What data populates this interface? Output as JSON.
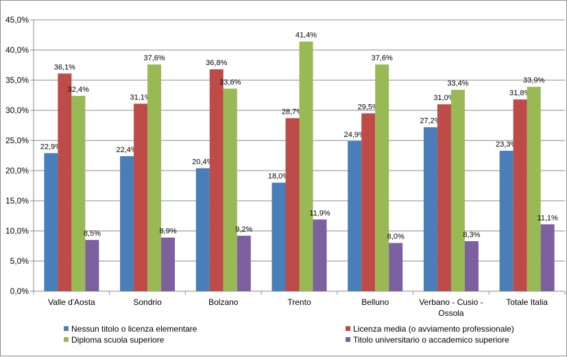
{
  "chart_data": {
    "type": "bar",
    "title": "",
    "xlabel": "",
    "ylabel": "",
    "ylim": [
      0,
      45
    ],
    "ytick_step": 5,
    "ytick_labels": [
      "0,0%",
      "5,0%",
      "10,0%",
      "15,0%",
      "20,0%",
      "25,0%",
      "30,0%",
      "35,0%",
      "40,0%",
      "45,0%"
    ],
    "grid": true,
    "legend_position": "bottom",
    "categories": [
      [
        "Valle d'Aosta"
      ],
      [
        "Sondrio"
      ],
      [
        "Bolzano"
      ],
      [
        "Trento"
      ],
      [
        "Belluno"
      ],
      [
        "Verbano - Cusio -",
        "Ossola"
      ],
      [
        "Totale Italia"
      ]
    ],
    "series": [
      {
        "name": "Nessun titolo o licenza elementare",
        "color": "#4a7ebb",
        "values": [
          22.9,
          22.4,
          20.4,
          18.0,
          24.9,
          27.2,
          23.3
        ],
        "labels": [
          "22,9%",
          "22,4%",
          "20,4%",
          "18,0%",
          "24,9%",
          "27,2%",
          "23,3%"
        ]
      },
      {
        "name": "Licenza media (o avviamento professionale)",
        "color": "#be4b48",
        "values": [
          36.1,
          31.1,
          36.8,
          28.7,
          29.5,
          31.0,
          31.8
        ],
        "labels": [
          "36,1%",
          "31,1%",
          "36,8%",
          "28,7%",
          "29,5%",
          "31,0%",
          "31,8%"
        ]
      },
      {
        "name": "Diploma scuola superiore",
        "color": "#98b954",
        "values": [
          32.4,
          37.6,
          33.6,
          41.4,
          37.6,
          33.4,
          33.9
        ],
        "labels": [
          "32,4%",
          "37,6%",
          "33,6%",
          "41,4%",
          "37,6%",
          "33,4%",
          "33,9%"
        ]
      },
      {
        "name": "Titolo universitario o accademico superiore",
        "color": "#7d60a0",
        "values": [
          8.5,
          8.9,
          9.2,
          11.9,
          8.0,
          8.3,
          11.1
        ],
        "labels": [
          "8,5%",
          "8,9%",
          "9,2%",
          "11,9%",
          "8,0%",
          "8,3%",
          "11,1%"
        ]
      }
    ]
  }
}
